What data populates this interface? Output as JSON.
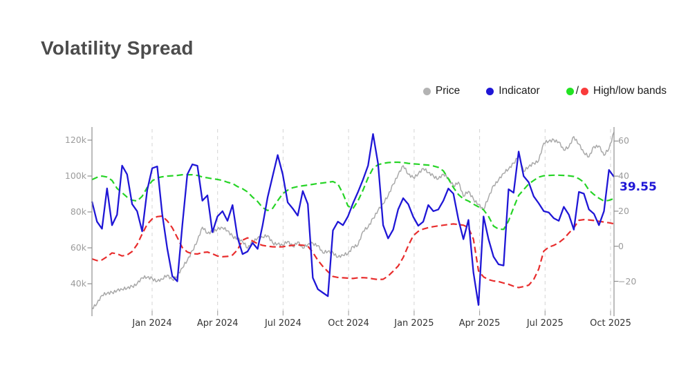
{
  "page": {
    "title": "Volatility Spread"
  },
  "legend": {
    "items": [
      {
        "id": "price",
        "label": "Price",
        "color": "#b3b3b3"
      },
      {
        "id": "indicator",
        "label": "Indicator",
        "color": "#1f16d6"
      },
      {
        "id": "bands",
        "label": "High/low bands",
        "color_high": "#22e322",
        "color_low": "#f93b3b",
        "separator": "/"
      }
    ]
  },
  "annotation": {
    "last_value": "39.55"
  },
  "chart_data": {
    "type": "line",
    "title": "Volatility Spread",
    "grid": "vertical-dashed",
    "legend_position": "top-right",
    "x_axis": {
      "tick_labels": [
        "Jan 2024",
        "Apr 2024",
        "Jul 2024",
        "Oct 2024",
        "Jan 2025",
        "Apr 2025",
        "Jul 2025",
        "Oct 2025"
      ]
    },
    "left_axis": {
      "unit": "k",
      "tick_labels": [
        "120k",
        "100k",
        "80k",
        "60k",
        "40k"
      ],
      "tick_values": [
        120,
        100,
        80,
        60,
        40
      ],
      "range_k": [
        22,
        127
      ]
    },
    "right_axis": {
      "tick_labels": [
        "60",
        "40",
        "20",
        "0",
        "−20"
      ],
      "tick_values": [
        60,
        40,
        20,
        0,
        -20
      ],
      "range": [
        -40,
        68
      ]
    },
    "last_indicator_value": 39.55,
    "series": [
      {
        "name": "Price",
        "axis": "left",
        "unit": "k",
        "color": "#a9a9a9",
        "style": "solid",
        "values": [
          26.5,
          29,
          33.5,
          34.6,
          35.2,
          36.3,
          36.8,
          37.5,
          38.6,
          40,
          43.3,
          43.6,
          43,
          41.4,
          42.5,
          44.8,
          42.3,
          44.5,
          48.8,
          53,
          58.5,
          64,
          71.5,
          68,
          69.2,
          70.4,
          71.2,
          69.5,
          66.5,
          65.2,
          63.5,
          59.8,
          63.5,
          65.5,
          65.9,
          66.8,
          62.8,
          62.2,
          61.4,
          63.6,
          60.8,
          63.3,
          59.8,
          61.8,
          62.6,
          61.3,
          57.2,
          58,
          57.5,
          54.8,
          55.9,
          56.7,
          60.8,
          61.6,
          69.2,
          71.5,
          76.5,
          81,
          84.5,
          89,
          95.5,
          100.8,
          105.8,
          101,
          99.2,
          101.2,
          104.2,
          101.9,
          100.2,
          98.4,
          101,
          98.6,
          94.6,
          96.6,
          88.7,
          91.5,
          87.2,
          84.2,
          81.2,
          88,
          94.8,
          97.8,
          101.5,
          103.9,
          107.2,
          111.4,
          102.5,
          105.2,
          107.2,
          108.6,
          118.3,
          119.4,
          120.2,
          119,
          114.4,
          116.2,
          122,
          117.8,
          112.9,
          110.6,
          116.5,
          116.8,
          111.5,
          115.2,
          124.5
        ]
      },
      {
        "name": "Indicator",
        "axis": "right",
        "color": "#1f16d6",
        "style": "solid",
        "values": [
          25.5,
          14,
          10,
          33,
          12,
          18,
          46,
          41,
          24,
          20,
          8.5,
          32,
          44.5,
          45.5,
          18.4,
          -1.3,
          -17,
          -20,
          12,
          41,
          46.7,
          45.9,
          26,
          29,
          8,
          17,
          20,
          14.5,
          23.5,
          5,
          -4.5,
          -3,
          1.9,
          -1.5,
          12,
          28,
          40,
          52,
          41,
          25,
          21.5,
          17.5,
          31.5,
          24,
          -18,
          -24.5,
          -26.5,
          -28.5,
          9,
          14,
          12,
          17,
          24.5,
          31,
          38,
          46,
          64,
          47,
          12,
          4.5,
          9.5,
          21,
          27.4,
          24,
          16.8,
          11.7,
          14,
          23.5,
          20,
          21,
          26,
          32.9,
          30,
          15.2,
          4,
          15,
          -15,
          -33.5,
          17,
          4,
          -6,
          -10.3,
          -11,
          32.5,
          30.5,
          54,
          40,
          36.5,
          28.5,
          24.5,
          20,
          19.3,
          16,
          14.5,
          22.5,
          18,
          9.5,
          31,
          30,
          21,
          18.5,
          12,
          20,
          43.5,
          39.55
        ]
      },
      {
        "name": "High band",
        "axis": "right",
        "color": "#26d426",
        "style": "dashed",
        "values": [
          38,
          39.3,
          40,
          39.5,
          37.5,
          33,
          30.5,
          28,
          26.3,
          25.8,
          28.5,
          33.5,
          37.3,
          39,
          39.6,
          40,
          40.2,
          40.4,
          40.8,
          40.8,
          40.8,
          40.4,
          39.5,
          39,
          38.5,
          38.1,
          37.5,
          36.5,
          35.8,
          34,
          32.8,
          31,
          28,
          25.5,
          22,
          20.4,
          21.6,
          26,
          30,
          32,
          33.4,
          34,
          34.5,
          34.9,
          35.3,
          35.8,
          36.1,
          36.5,
          36.9,
          35.5,
          30,
          23,
          21.5,
          26,
          32,
          39,
          44.5,
          46.5,
          47.3,
          47.7,
          47.9,
          47.9,
          47.7,
          47.3,
          47,
          46.8,
          46.5,
          46.3,
          45.8,
          45,
          43,
          38.5,
          33.5,
          29.5,
          27,
          25.8,
          24,
          22.5,
          20.8,
          17,
          11.5,
          9.8,
          9.6,
          14.5,
          22,
          29,
          32.3,
          35.5,
          37.5,
          39.4,
          40.2,
          40.4,
          40.5,
          40.5,
          40.4,
          40.2,
          39.8,
          38.5,
          36.5,
          32,
          29.5,
          27.4,
          25.8,
          26.2,
          27.2
        ]
      },
      {
        "name": "Low band",
        "axis": "right",
        "color": "#e82c2c",
        "style": "dashed",
        "values": [
          -7.2,
          -8.2,
          -7.8,
          -6,
          -3.8,
          -4.3,
          -5.5,
          -5,
          -3,
          1,
          7,
          12.5,
          15.6,
          16.9,
          17.2,
          14.5,
          10.5,
          5,
          -0.8,
          -3.3,
          -4.3,
          -4.4,
          -3.6,
          -3.3,
          -4.3,
          -5.6,
          -6,
          -5.8,
          -5,
          -2,
          3.5,
          4.8,
          3,
          1.4,
          0.5,
          0,
          -0.3,
          -0.4,
          -0.3,
          0.2,
          0.5,
          0.8,
          0.6,
          0,
          -3.5,
          -8,
          -11.5,
          -14.5,
          -17.2,
          -17.8,
          -18,
          -18.2,
          -18.4,
          -18,
          -17.9,
          -18.1,
          -18.6,
          -19,
          -18.8,
          -17,
          -14.2,
          -11.3,
          -6.4,
          0.3,
          6,
          8.5,
          9.8,
          10.6,
          11.2,
          11.6,
          12,
          12.4,
          12.7,
          12.4,
          12,
          10.6,
          4,
          -14,
          -17.5,
          -19,
          -19.8,
          -20.1,
          -21,
          -21.7,
          -22.8,
          -23.6,
          -23,
          -22.2,
          -19,
          -13,
          -2.8,
          -0.5,
          0.5,
          2,
          4.3,
          7.5,
          10.5,
          14.8,
          15.2,
          15,
          14.7,
          14.2,
          13.8,
          13.4,
          12.8
        ]
      }
    ]
  }
}
